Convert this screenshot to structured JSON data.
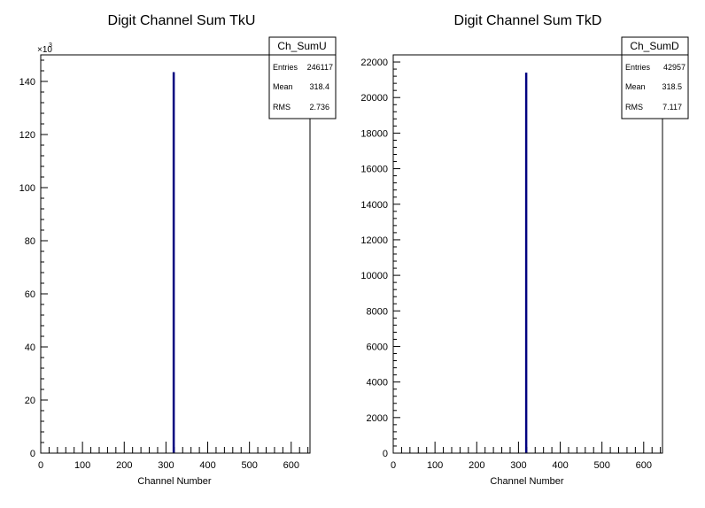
{
  "chart_data": [
    {
      "type": "histogram",
      "title": "Digit Channel Sum TkU",
      "xlabel": "Channel Number",
      "ylabel": "",
      "xlim": [
        0,
        645
      ],
      "ylim": [
        0,
        150000
      ],
      "multiplier_label": "×10",
      "multiplier_exponent": "3",
      "x_ticks": [
        "0",
        "100",
        "200",
        "300",
        "400",
        "500",
        "600"
      ],
      "y_ticks": [
        "0",
        "20",
        "40",
        "60",
        "80",
        "100",
        "120",
        "140"
      ],
      "y_tick_values": [
        0,
        20000,
        40000,
        60000,
        80000,
        100000,
        120000,
        140000
      ],
      "bins": [
        {
          "x": 318,
          "y": 143500
        }
      ],
      "line_color": "#000080",
      "stats": {
        "name": "Ch_SumU",
        "rows": [
          {
            "label": "Entries",
            "value": "246117"
          },
          {
            "label": "Mean",
            "value": "318.4"
          },
          {
            "label": "RMS",
            "value": "2.736"
          }
        ]
      }
    },
    {
      "type": "histogram",
      "title": "Digit Channel Sum TkD",
      "xlabel": "Channel Number",
      "ylabel": "",
      "xlim": [
        0,
        645
      ],
      "ylim": [
        0,
        22400
      ],
      "multiplier_label": "",
      "multiplier_exponent": "",
      "x_ticks": [
        "0",
        "100",
        "200",
        "300",
        "400",
        "500",
        "600"
      ],
      "y_ticks": [
        "0",
        "2000",
        "4000",
        "6000",
        "8000",
        "10000",
        "12000",
        "14000",
        "16000",
        "18000",
        "20000",
        "22000"
      ],
      "y_tick_values": [
        0,
        2000,
        4000,
        6000,
        8000,
        10000,
        12000,
        14000,
        16000,
        18000,
        20000,
        22000
      ],
      "bins": [
        {
          "x": 318,
          "y": 21400
        }
      ],
      "line_color": "#000080",
      "stats": {
        "name": "Ch_SumD",
        "rows": [
          {
            "label": "Entries",
            "value": "42957"
          },
          {
            "label": "Mean",
            "value": "318.5"
          },
          {
            "label": "RMS",
            "value": "7.117"
          }
        ]
      }
    }
  ]
}
